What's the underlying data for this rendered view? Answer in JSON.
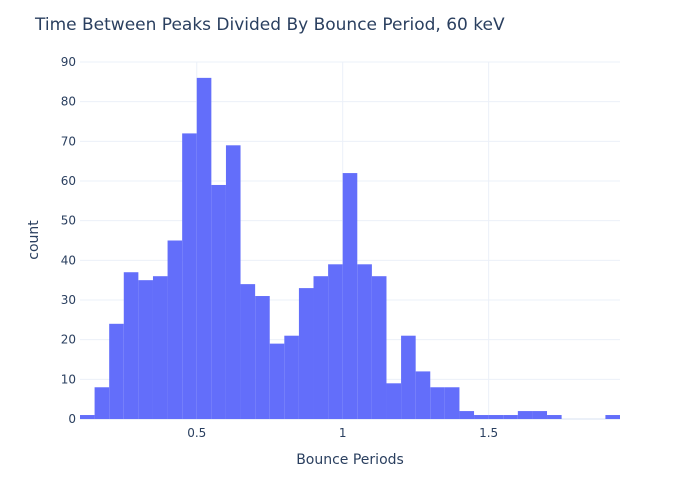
{
  "chart_data": {
    "type": "bar",
    "title": "Time Between Peaks Divided By Bounce Period, 60 keV",
    "xlabel": "Bounce Periods",
    "ylabel": "count",
    "xlim": [
      0.1,
      1.95
    ],
    "ylim": [
      0,
      90
    ],
    "bin_width": 0.05,
    "x_ticks": [
      0.5,
      1,
      1.5
    ],
    "x_tick_labels": [
      "0.5",
      "1",
      "1.5"
    ],
    "y_ticks": [
      0,
      10,
      20,
      30,
      40,
      50,
      60,
      70,
      80,
      90
    ],
    "y_tick_labels": [
      "0",
      "10",
      "20",
      "30",
      "40",
      "50",
      "60",
      "70",
      "80",
      "90"
    ],
    "bar_color": "#636efa",
    "grid": true,
    "bins": [
      {
        "x": 0.125,
        "count": 1
      },
      {
        "x": 0.175,
        "count": 8
      },
      {
        "x": 0.225,
        "count": 24
      },
      {
        "x": 0.275,
        "count": 37
      },
      {
        "x": 0.325,
        "count": 35
      },
      {
        "x": 0.375,
        "count": 36
      },
      {
        "x": 0.425,
        "count": 45
      },
      {
        "x": 0.475,
        "count": 72
      },
      {
        "x": 0.525,
        "count": 86
      },
      {
        "x": 0.575,
        "count": 59
      },
      {
        "x": 0.625,
        "count": 69
      },
      {
        "x": 0.675,
        "count": 34
      },
      {
        "x": 0.725,
        "count": 31
      },
      {
        "x": 0.775,
        "count": 19
      },
      {
        "x": 0.825,
        "count": 21
      },
      {
        "x": 0.875,
        "count": 33
      },
      {
        "x": 0.925,
        "count": 36
      },
      {
        "x": 0.975,
        "count": 39
      },
      {
        "x": 1.025,
        "count": 62
      },
      {
        "x": 1.075,
        "count": 39
      },
      {
        "x": 1.125,
        "count": 36
      },
      {
        "x": 1.175,
        "count": 9
      },
      {
        "x": 1.225,
        "count": 21
      },
      {
        "x": 1.275,
        "count": 12
      },
      {
        "x": 1.325,
        "count": 8
      },
      {
        "x": 1.375,
        "count": 8
      },
      {
        "x": 1.425,
        "count": 2
      },
      {
        "x": 1.475,
        "count": 1
      },
      {
        "x": 1.525,
        "count": 1
      },
      {
        "x": 1.575,
        "count": 1
      },
      {
        "x": 1.625,
        "count": 2
      },
      {
        "x": 1.675,
        "count": 2
      },
      {
        "x": 1.725,
        "count": 1
      },
      {
        "x": 1.775,
        "count": 0
      },
      {
        "x": 1.825,
        "count": 0
      },
      {
        "x": 1.875,
        "count": 0
      },
      {
        "x": 1.925,
        "count": 1
      }
    ]
  }
}
